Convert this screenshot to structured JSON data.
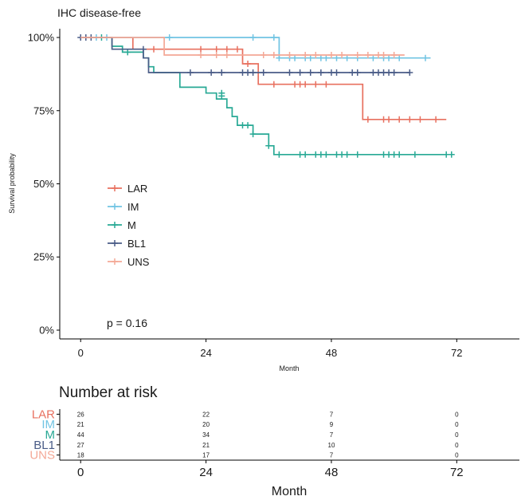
{
  "chart_data": {
    "type": "line",
    "title": "IHC disease-free",
    "xlabel": "Month",
    "ylabel": "Survival probability",
    "x_ticks": [
      "0",
      "24",
      "48",
      "72"
    ],
    "x_tick_values": [
      0,
      24,
      48,
      72
    ],
    "y_ticks": [
      "0%",
      "25%",
      "50%",
      "75%",
      "100%"
    ],
    "y_tick_values": [
      0,
      25,
      50,
      75,
      100
    ],
    "xlim": [
      -4,
      84
    ],
    "ylim": [
      -3,
      103
    ],
    "pvalue": "p = 0.16",
    "legend_position": "left-middle",
    "series": [
      {
        "name": "LAR",
        "color": "#E8705F",
        "steps": [
          [
            0,
            100
          ],
          [
            10,
            100
          ],
          [
            10,
            96
          ],
          [
            31,
            96
          ],
          [
            31,
            91
          ],
          [
            34,
            91
          ],
          [
            34,
            84
          ],
          [
            54,
            84
          ],
          [
            54,
            72
          ],
          [
            70,
            72
          ]
        ],
        "censors": [
          [
            14,
            96
          ],
          [
            23,
            96
          ],
          [
            26,
            96
          ],
          [
            28,
            96
          ],
          [
            30,
            96
          ],
          [
            32,
            91
          ],
          [
            37,
            84
          ],
          [
            41,
            84
          ],
          [
            42,
            84
          ],
          [
            43,
            84
          ],
          [
            45,
            84
          ],
          [
            47,
            84
          ],
          [
            55,
            72
          ],
          [
            58,
            72
          ],
          [
            59,
            72
          ],
          [
            61,
            72
          ],
          [
            63,
            72
          ],
          [
            65,
            72
          ],
          [
            68,
            72
          ]
        ]
      },
      {
        "name": "IM",
        "color": "#71C4E3",
        "steps": [
          [
            0,
            100
          ],
          [
            38,
            100
          ],
          [
            38,
            93
          ],
          [
            67,
            93
          ]
        ],
        "censors": [
          [
            3,
            100
          ],
          [
            5,
            100
          ],
          [
            17,
            100
          ],
          [
            33,
            100
          ],
          [
            37,
            100
          ],
          [
            38,
            93
          ],
          [
            40,
            93
          ],
          [
            41,
            93
          ],
          [
            43,
            93
          ],
          [
            44,
            93
          ],
          [
            46,
            93
          ],
          [
            47,
            93
          ],
          [
            49,
            93
          ],
          [
            51,
            93
          ],
          [
            53,
            93
          ],
          [
            56,
            93
          ],
          [
            58,
            93
          ],
          [
            59,
            93
          ],
          [
            61,
            93
          ],
          [
            66,
            93
          ]
        ]
      },
      {
        "name": "M",
        "color": "#28A995",
        "steps": [
          [
            0,
            100
          ],
          [
            6,
            100
          ],
          [
            6,
            97
          ],
          [
            8,
            97
          ],
          [
            8,
            95
          ],
          [
            12,
            95
          ],
          [
            12,
            93
          ],
          [
            13,
            93
          ],
          [
            13,
            90
          ],
          [
            14,
            90
          ],
          [
            14,
            88
          ],
          [
            19,
            88
          ],
          [
            19,
            83
          ],
          [
            24,
            83
          ],
          [
            24,
            81
          ],
          [
            26,
            81
          ],
          [
            26,
            79
          ],
          [
            28,
            79
          ],
          [
            28,
            76
          ],
          [
            29,
            76
          ],
          [
            29,
            73
          ],
          [
            30,
            73
          ],
          [
            30,
            70
          ],
          [
            33,
            70
          ],
          [
            33,
            67
          ],
          [
            36,
            67
          ],
          [
            36,
            63
          ],
          [
            37,
            63
          ],
          [
            37,
            60
          ],
          [
            70,
            60
          ]
        ],
        "censors": [
          [
            4,
            100
          ],
          [
            9,
            95
          ],
          [
            27,
            81
          ],
          [
            27,
            80
          ],
          [
            31,
            70
          ],
          [
            32,
            70
          ],
          [
            33,
            67
          ],
          [
            36,
            63
          ],
          [
            38,
            60
          ],
          [
            42,
            60
          ],
          [
            43,
            60
          ],
          [
            45,
            60
          ],
          [
            46,
            60
          ],
          [
            47,
            60
          ],
          [
            49,
            60
          ],
          [
            50,
            60
          ],
          [
            51,
            60
          ],
          [
            53,
            60
          ],
          [
            58,
            60
          ],
          [
            59,
            60
          ],
          [
            60,
            60
          ],
          [
            61,
            60
          ],
          [
            64,
            60
          ],
          [
            70,
            60
          ],
          [
            71,
            60
          ]
        ]
      },
      {
        "name": "BL1",
        "color": "#4A5C87",
        "steps": [
          [
            0,
            100
          ],
          [
            6,
            100
          ],
          [
            6,
            96
          ],
          [
            12,
            96
          ],
          [
            12,
            93
          ],
          [
            13,
            93
          ],
          [
            13,
            88
          ],
          [
            63,
            88
          ]
        ],
        "censors": [
          [
            0,
            100
          ],
          [
            1,
            100
          ],
          [
            2,
            100
          ],
          [
            12,
            96
          ],
          [
            21,
            88
          ],
          [
            25,
            88
          ],
          [
            27,
            88
          ],
          [
            31,
            88
          ],
          [
            32,
            88
          ],
          [
            33,
            88
          ],
          [
            35,
            88
          ],
          [
            40,
            88
          ],
          [
            42,
            88
          ],
          [
            44,
            88
          ],
          [
            46,
            88
          ],
          [
            48,
            88
          ],
          [
            49,
            88
          ],
          [
            52,
            88
          ],
          [
            53,
            88
          ],
          [
            56,
            88
          ],
          [
            57,
            88
          ],
          [
            58,
            88
          ],
          [
            59,
            88
          ],
          [
            60,
            88
          ],
          [
            63,
            88
          ]
        ]
      },
      {
        "name": "UNS",
        "color": "#F4A896",
        "steps": [
          [
            0,
            100
          ],
          [
            16,
            100
          ],
          [
            16,
            94
          ],
          [
            62,
            94
          ]
        ],
        "censors": [
          [
            23,
            94
          ],
          [
            26,
            94
          ],
          [
            28,
            94
          ],
          [
            35,
            94
          ],
          [
            37,
            94
          ],
          [
            40,
            94
          ],
          [
            43,
            94
          ],
          [
            45,
            94
          ],
          [
            48,
            94
          ],
          [
            50,
            94
          ],
          [
            53,
            94
          ],
          [
            55,
            94
          ],
          [
            57,
            94
          ],
          [
            58,
            94
          ],
          [
            60,
            94
          ]
        ]
      }
    ],
    "risk_table": {
      "title": "Number at risk",
      "xlabel": "Month",
      "x_ticks": [
        "0",
        "24",
        "48",
        "72"
      ],
      "times": [
        0,
        24,
        48,
        72
      ],
      "rows": [
        {
          "name": "LAR",
          "color": "#E8705F",
          "values": [
            "26",
            "22",
            "7",
            "0"
          ]
        },
        {
          "name": "IM",
          "color": "#71C4E3",
          "values": [
            "21",
            "20",
            "9",
            "0"
          ]
        },
        {
          "name": "M",
          "color": "#28A995",
          "values": [
            "44",
            "34",
            "7",
            "0"
          ]
        },
        {
          "name": "BL1",
          "color": "#4A5C87",
          "values": [
            "27",
            "21",
            "10",
            "0"
          ]
        },
        {
          "name": "UNS",
          "color": "#F4A896",
          "values": [
            "18",
            "17",
            "7",
            "0"
          ]
        }
      ]
    }
  }
}
